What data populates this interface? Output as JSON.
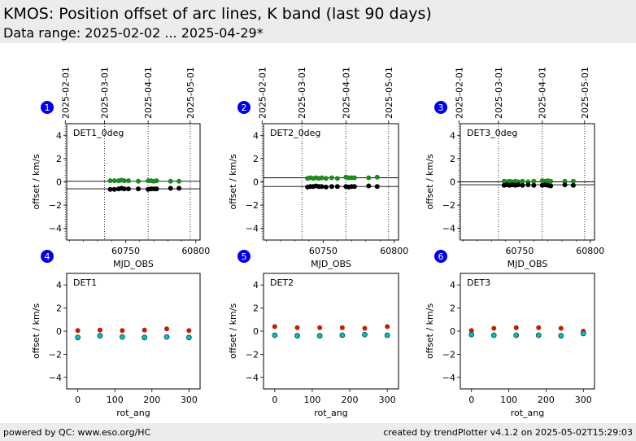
{
  "header": {
    "title": "KMOS: Position offset of arc lines, K band (last 90 days)",
    "subtitle": "Data range: 2025-02-02 ... 2025-04-29*"
  },
  "footer": {
    "left": "powered by QC: www.eso.org/HC",
    "right": "created by trendPlotter v4.1.2 on 2025-05-02T15:29:03"
  },
  "colors": {
    "green": "#1f8a1f",
    "black": "#000000",
    "red": "#c02000",
    "cyan": "#00c0c0",
    "badge": "#0000ee"
  },
  "chart_data": [
    {
      "panel": "1",
      "type": "scatter",
      "label": "DET1_0deg",
      "xlabel": "MJD_OBS",
      "ylabel": "offset / km/s",
      "xlim": [
        60708,
        60803
      ],
      "ylim": [
        -5,
        5
      ],
      "xticks": [
        60750,
        60800
      ],
      "yticks": [
        -4,
        -2,
        0,
        2,
        4
      ],
      "date_ticks": [
        {
          "label": "2025-02-01",
          "mjd": 60707.0
        },
        {
          "label": "2025-03-01",
          "mjd": 60735.0
        },
        {
          "label": "2025-04-01",
          "mjd": 60766.0
        },
        {
          "label": "2025-05-01",
          "mjd": 60796.0
        }
      ],
      "hlines": [
        0.05,
        -0.6
      ],
      "series": [
        {
          "color": "green",
          "x": [
            60739,
            60742,
            60745,
            60747,
            60749,
            60752,
            60759,
            60766,
            60768,
            60770,
            60772,
            60782,
            60788
          ],
          "y": [
            0.1,
            0.1,
            0.1,
            0.15,
            0.1,
            0.1,
            0.05,
            0.1,
            0.1,
            0.05,
            0.1,
            0.05,
            0.05
          ]
        },
        {
          "color": "black",
          "x": [
            60739,
            60742,
            60745,
            60747,
            60749,
            60752,
            60759,
            60766,
            60768,
            60770,
            60772,
            60782,
            60788
          ],
          "y": [
            -0.65,
            -0.65,
            -0.6,
            -0.55,
            -0.6,
            -0.6,
            -0.6,
            -0.65,
            -0.6,
            -0.6,
            -0.6,
            -0.55,
            -0.55
          ]
        }
      ]
    },
    {
      "panel": "2",
      "type": "scatter",
      "label": "DET2_0deg",
      "xlabel": "MJD_OBS",
      "ylabel": "offset / km/s",
      "xlim": [
        60708,
        60803
      ],
      "ylim": [
        -5,
        5
      ],
      "xticks": [
        60750,
        60800
      ],
      "yticks": [
        -4,
        -2,
        0,
        2,
        4
      ],
      "date_ticks": [
        {
          "label": "2025-02-01",
          "mjd": 60707.0
        },
        {
          "label": "2025-03-01",
          "mjd": 60735.0
        },
        {
          "label": "2025-04-01",
          "mjd": 60766.0
        },
        {
          "label": "2025-05-01",
          "mjd": 60796.0
        }
      ],
      "hlines": [
        0.35,
        -0.4
      ],
      "series": [
        {
          "color": "green",
          "x": [
            60739,
            60741,
            60743,
            60745,
            60747,
            60749,
            60752,
            60756,
            60760,
            60766,
            60768,
            60770,
            60772,
            60782,
            60788
          ],
          "y": [
            0.3,
            0.35,
            0.3,
            0.35,
            0.3,
            0.35,
            0.3,
            0.35,
            0.3,
            0.4,
            0.35,
            0.35,
            0.35,
            0.35,
            0.4
          ]
        },
        {
          "color": "black",
          "x": [
            60739,
            60741,
            60743,
            60745,
            60747,
            60749,
            60752,
            60756,
            60760,
            60766,
            60768,
            60770,
            60772,
            60782,
            60788
          ],
          "y": [
            -0.45,
            -0.4,
            -0.4,
            -0.35,
            -0.4,
            -0.4,
            -0.45,
            -0.4,
            -0.4,
            -0.4,
            -0.45,
            -0.4,
            -0.4,
            -0.35,
            -0.4
          ]
        }
      ]
    },
    {
      "panel": "3",
      "type": "scatter",
      "label": "DET3_0deg",
      "xlabel": "MJD_OBS",
      "ylabel": "offset / km/s",
      "xlim": [
        60708,
        60803
      ],
      "ylim": [
        -5,
        5
      ],
      "xticks": [
        60750,
        60800
      ],
      "yticks": [
        -4,
        -2,
        0,
        2,
        4
      ],
      "date_ticks": [
        {
          "label": "2025-02-01",
          "mjd": 60707.0
        },
        {
          "label": "2025-03-01",
          "mjd": 60735.0
        },
        {
          "label": "2025-04-01",
          "mjd": 60766.0
        },
        {
          "label": "2025-05-01",
          "mjd": 60796.0
        }
      ],
      "hlines": [
        0.0,
        -0.25
      ],
      "series": [
        {
          "color": "green",
          "x": [
            60739,
            60741,
            60743,
            60745,
            60747,
            60749,
            60752,
            60756,
            60760,
            60766,
            60768,
            60770,
            60772,
            60782,
            60788
          ],
          "y": [
            0.05,
            0.0,
            0.05,
            0.0,
            0.05,
            0.0,
            0.05,
            0.0,
            0.05,
            0.1,
            0.05,
            0.1,
            0.05,
            0.05,
            0.05
          ]
        },
        {
          "color": "black",
          "x": [
            60739,
            60741,
            60743,
            60745,
            60747,
            60749,
            60752,
            60756,
            60760,
            60766,
            60768,
            60770,
            60772,
            60782,
            60788
          ],
          "y": [
            -0.3,
            -0.25,
            -0.3,
            -0.25,
            -0.3,
            -0.25,
            -0.3,
            -0.25,
            -0.3,
            -0.3,
            -0.25,
            -0.3,
            -0.35,
            -0.25,
            -0.3
          ]
        }
      ]
    },
    {
      "panel": "4",
      "type": "scatter",
      "label": "DET1",
      "xlabel": "rot_ang",
      "ylabel": "offset / km/s",
      "xlim": [
        -30,
        330
      ],
      "ylim": [
        -5,
        5
      ],
      "xticks": [
        0,
        100,
        200,
        300
      ],
      "yticks": [
        -4,
        -2,
        0,
        2,
        4
      ],
      "series": [
        {
          "color": "red",
          "x": [
            0,
            60,
            120,
            180,
            240,
            300
          ],
          "y": [
            0.05,
            0.1,
            0.05,
            0.1,
            0.2,
            0.05
          ]
        },
        {
          "color": "cyan",
          "x": [
            0,
            60,
            120,
            180,
            240,
            300
          ],
          "y": [
            -0.55,
            -0.4,
            -0.5,
            -0.55,
            -0.5,
            -0.55
          ]
        }
      ]
    },
    {
      "panel": "5",
      "type": "scatter",
      "label": "DET2",
      "xlabel": "rot_ang",
      "ylabel": "offset / km/s",
      "xlim": [
        -30,
        330
      ],
      "ylim": [
        -5,
        5
      ],
      "xticks": [
        0,
        100,
        200,
        300
      ],
      "yticks": [
        -4,
        -2,
        0,
        2,
        4
      ],
      "series": [
        {
          "color": "red",
          "x": [
            0,
            60,
            120,
            180,
            240,
            300
          ],
          "y": [
            0.4,
            0.3,
            0.3,
            0.3,
            0.25,
            0.4
          ]
        },
        {
          "color": "cyan",
          "x": [
            0,
            60,
            120,
            180,
            240,
            300
          ],
          "y": [
            -0.35,
            -0.4,
            -0.4,
            -0.35,
            -0.3,
            -0.35
          ]
        }
      ]
    },
    {
      "panel": "6",
      "type": "scatter",
      "label": "DET3",
      "xlabel": "rot_ang",
      "ylabel": "offset / km/s",
      "xlim": [
        -30,
        330
      ],
      "ylim": [
        -5,
        5
      ],
      "xticks": [
        0,
        100,
        200,
        300
      ],
      "yticks": [
        -4,
        -2,
        0,
        2,
        4
      ],
      "series": [
        {
          "color": "red",
          "x": [
            0,
            60,
            120,
            180,
            240,
            300
          ],
          "y": [
            0.05,
            0.25,
            0.3,
            0.3,
            0.25,
            0.0
          ]
        },
        {
          "color": "cyan",
          "x": [
            0,
            60,
            120,
            180,
            240,
            300
          ],
          "y": [
            -0.3,
            -0.35,
            -0.35,
            -0.35,
            -0.4,
            -0.2
          ]
        }
      ]
    }
  ]
}
